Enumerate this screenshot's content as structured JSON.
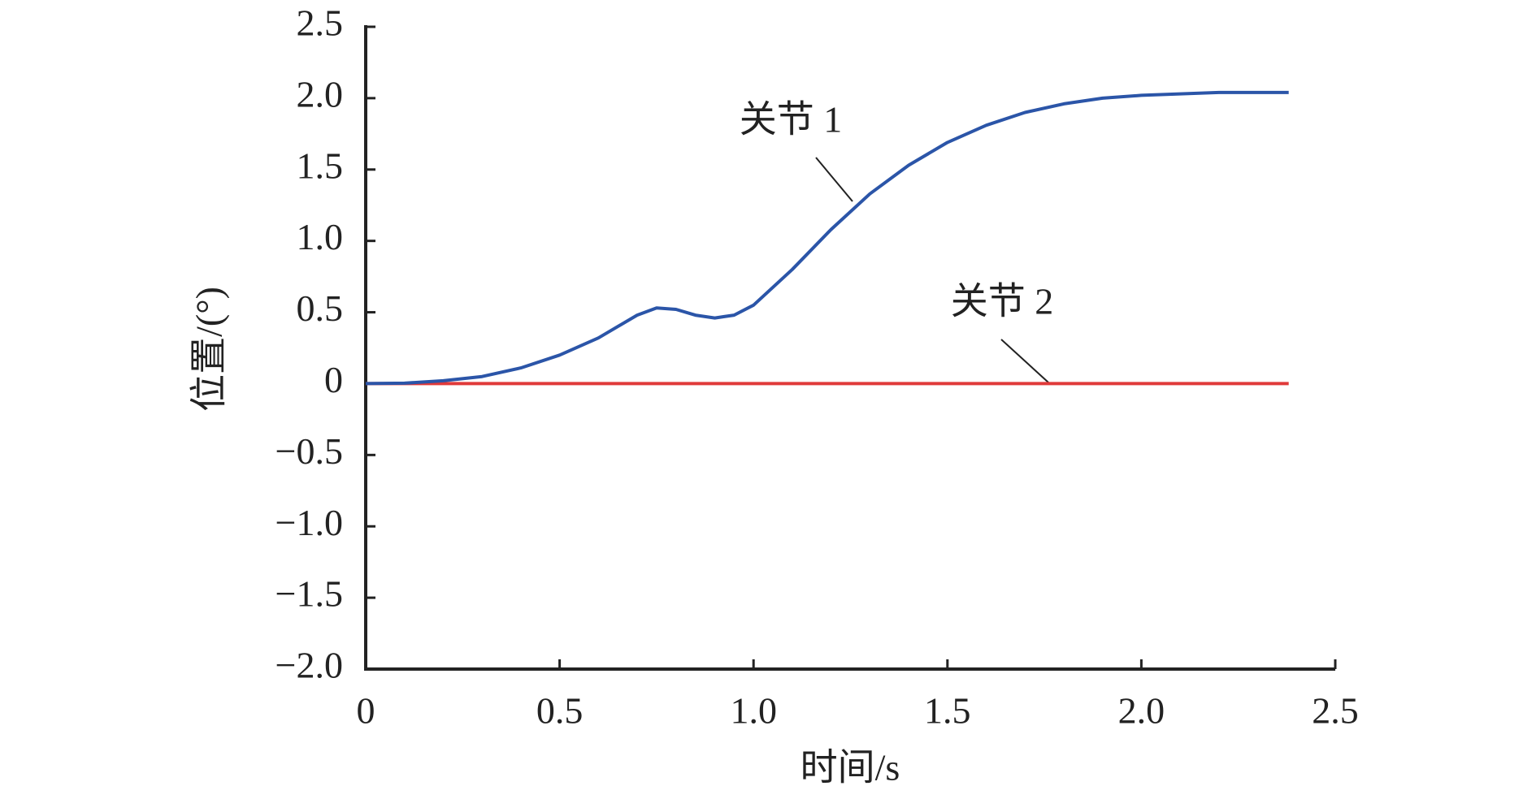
{
  "chart_data": {
    "type": "line",
    "xlabel": "时间/s",
    "ylabel": "位置/(°)",
    "x": [
      0,
      0.1,
      0.2,
      0.3,
      0.4,
      0.5,
      0.6,
      0.7,
      0.75,
      0.8,
      0.85,
      0.9,
      0.95,
      1.0,
      1.1,
      1.2,
      1.3,
      1.4,
      1.5,
      1.6,
      1.7,
      1.8,
      1.9,
      2.0,
      2.1,
      2.2,
      2.3,
      2.38
    ],
    "series": [
      {
        "name": "关节 1",
        "color": "#2b55a8",
        "values": [
          0,
          0.003,
          0.02,
          0.05,
          0.11,
          0.2,
          0.32,
          0.48,
          0.53,
          0.52,
          0.48,
          0.46,
          0.48,
          0.55,
          0.8,
          1.08,
          1.33,
          1.53,
          1.69,
          1.81,
          1.9,
          1.96,
          2.0,
          2.02,
          2.03,
          2.04,
          2.04,
          2.04
        ]
      },
      {
        "name": "关节 2",
        "color": "#e03a3a",
        "values": [
          0,
          0,
          0,
          0,
          0,
          0,
          0,
          0,
          0,
          0,
          0,
          0,
          0,
          0,
          0,
          0,
          0,
          0,
          0,
          0,
          0,
          0,
          0,
          0,
          0,
          0,
          0,
          0
        ]
      }
    ],
    "xlim": [
      0,
      2.5
    ],
    "xticks": [
      0,
      0.5,
      {
        "value": 1,
        "label": "1.0"
      },
      1.5,
      {
        "value": 2,
        "label": "2.0"
      },
      2.5
    ],
    "ylim": [
      -2,
      2.5
    ],
    "yticks": [
      {
        "value": -2,
        "label": "−2.0"
      },
      {
        "value": -1.5,
        "label": "−1.5"
      },
      {
        "value": -1,
        "label": "−1.0"
      },
      {
        "value": -0.5,
        "label": "−0.5"
      },
      0,
      0.5,
      {
        "value": 1,
        "label": "1.0"
      },
      1.5,
      {
        "value": 2,
        "label": "2.0"
      },
      2.5
    ],
    "grid": false
  }
}
